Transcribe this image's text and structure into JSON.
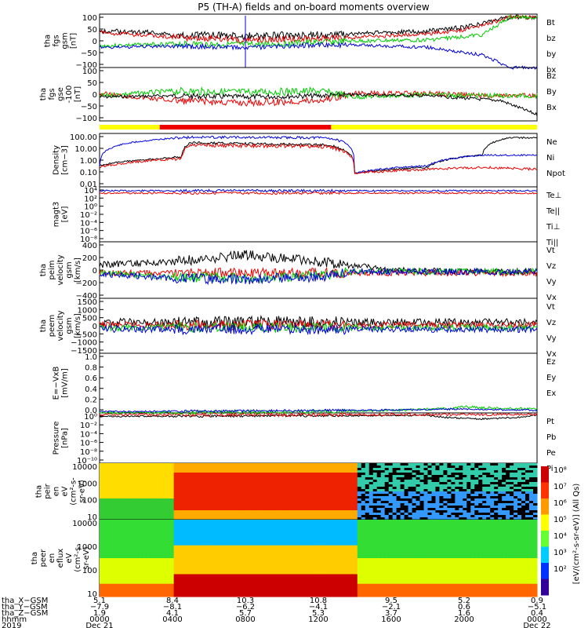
{
  "title": "P5 (TH-A) fields and on-board moments overview",
  "colors": {
    "black": "#000000",
    "red": "#ee0000",
    "green": "#00cc00",
    "blue": "#0000dd",
    "yellow": "#ffff00"
  },
  "panels": [
    {
      "id": "fgs",
      "ylabel": [
        "tha",
        "fgs",
        "gsm",
        "[nT]"
      ],
      "yticks": [
        "100",
        "50",
        "0",
        "−50",
        "−100"
      ],
      "legend": [
        {
          "text": "Bt",
          "color": "black"
        },
        {
          "text": "bz",
          "color": "red"
        },
        {
          "text": "by",
          "color": "green"
        },
        {
          "text": "bx",
          "color": "blue"
        }
      ]
    },
    {
      "id": "fgs-dsl",
      "ylabel": [
        "tha",
        "fgs",
        "gse",
        "-100",
        "[nT]"
      ],
      "yticks": [
        "100",
        "50",
        "0",
        "−50",
        "−100"
      ],
      "legend": [
        {
          "text": "Bz",
          "color": "red"
        },
        {
          "text": "By",
          "color": "green"
        },
        {
          "text": "Bx",
          "color": "black"
        }
      ]
    },
    {
      "id": "density",
      "ylabel": [
        "Density",
        "[cm−3]"
      ],
      "yticks": [
        "100.00",
        "10.00",
        "1.00",
        "0.10",
        "0.01"
      ],
      "legend": [
        {
          "text": "Ne",
          "color": "red"
        },
        {
          "text": "Ni",
          "color": "black"
        },
        {
          "text": "Npot",
          "color": "blue"
        }
      ]
    },
    {
      "id": "temp",
      "ylabel": [
        "magt3",
        "[eV]"
      ],
      "yticks": [
        "10⁴",
        "10²",
        "10⁰",
        "10⁻²",
        "10⁻⁴",
        "10⁻⁶",
        "10⁻⁸"
      ],
      "legend": [
        {
          "text": "Te⊥",
          "color": "red"
        },
        {
          "text": "Te||",
          "color": "black"
        },
        {
          "text": "Ti⊥",
          "color": "blue"
        },
        {
          "text": "Ti||",
          "color": "green"
        }
      ]
    },
    {
      "id": "peim",
      "ylabel": [
        "tha",
        "peim",
        "velocity",
        "gsm",
        "[km/s]"
      ],
      "yticks": [
        "400",
        "200",
        "0",
        "−200",
        "−400"
      ],
      "legend": [
        {
          "text": "Vt",
          "color": "black"
        },
        {
          "text": "Vz",
          "color": "red"
        },
        {
          "text": "Vy",
          "color": "green"
        },
        {
          "text": "Vx",
          "color": "blue"
        }
      ]
    },
    {
      "id": "peem",
      "ylabel": [
        "tha",
        "peem",
        "velocity",
        "gsm",
        "[km/s]"
      ],
      "yticks": [
        "1500",
        "1000",
        "500",
        "0",
        "−500",
        "−1000",
        "−1500"
      ],
      "legend": [
        {
          "text": "Vt",
          "color": "black"
        },
        {
          "text": "Vz",
          "color": "red"
        },
        {
          "text": "Vy",
          "color": "green"
        },
        {
          "text": "Vx",
          "color": "blue"
        }
      ]
    },
    {
      "id": "efield",
      "ylabel": [
        "E=−VxB",
        "[mV/m]"
      ],
      "yticks": [
        "1.0",
        "0.8",
        "0.6",
        "0.4",
        "0.2",
        "0.0"
      ],
      "legend": [
        {
          "text": "Ez",
          "color": "red"
        },
        {
          "text": "Ey",
          "color": "green"
        },
        {
          "text": "Ex",
          "color": "blue"
        }
      ]
    },
    {
      "id": "pressure",
      "ylabel": [
        "Pressure",
        "[nPa]"
      ],
      "yticks": [
        "10⁰",
        "10⁻²",
        "10⁻⁴",
        "10⁻⁶",
        "10⁻⁸",
        "10⁻¹⁰"
      ],
      "legend": [
        {
          "text": "Pt",
          "color": "black"
        },
        {
          "text": "Pb",
          "color": "red"
        },
        {
          "text": "Pe",
          "color": "green"
        },
        {
          "text": "Pi",
          "color": "blue"
        }
      ]
    },
    {
      "id": "peir",
      "ylabel": [
        "tha",
        "peir",
        "en",
        "eV",
        "(cm²-s-",
        "sr-eV)"
      ],
      "yticks": [
        "10000",
        "1000",
        "100",
        "10"
      ],
      "legend": []
    },
    {
      "id": "peer",
      "ylabel": [
        "tha",
        "peer",
        "en",
        "eflux",
        "eV",
        "(cm²-s-",
        "sr-eV)"
      ],
      "yticks": [
        "10000",
        "1000",
        "100",
        "10"
      ],
      "legend": []
    }
  ],
  "colorbar": {
    "label": "[eV/(cm²-s-sr-eV)] (All Qs)",
    "ticks": [
      "10⁸",
      "10⁷",
      "10⁶",
      "10⁵",
      "10⁴",
      "10³",
      "10²"
    ]
  },
  "xaxis": {
    "rows": [
      {
        "label": "tha_X−GSM",
        "values": [
          "5.1",
          "8.4",
          "10.3",
          "10.8",
          "9.5",
          "5.2",
          "0.9"
        ]
      },
      {
        "label": "tha_Y−GSM",
        "values": [
          "−7.9",
          "−8.1",
          "−6.2",
          "−4.1",
          "−2.1",
          "0.6",
          "−5.1"
        ]
      },
      {
        "label": "tha_Z−GSM",
        "values": [
          "1.9",
          "4.1",
          "5.7",
          "5.3",
          "3.7",
          "1.6",
          "0.4"
        ]
      },
      {
        "label": "hhmm",
        "values": [
          "0000",
          "0400",
          "0800",
          "1200",
          "1600",
          "2000",
          "0000"
        ]
      },
      {
        "label": "2019",
        "values": [
          "Dec 21",
          "",
          "",
          "",
          "",
          "",
          "Dec 22"
        ]
      }
    ]
  },
  "chart_data": {
    "type": "line",
    "title": "P5 (TH-A) fields and on-board moments overview",
    "time_ticks": [
      "0000",
      "0400",
      "0800",
      "1200",
      "1600",
      "2000",
      "0000"
    ],
    "series": [
      {
        "panel": "fgs",
        "name": "Bt",
        "hours": [
          0,
          3,
          4,
          8,
          12,
          14,
          18,
          20,
          22.5
        ],
        "values": [
          45,
          40,
          30,
          25,
          30,
          35,
          45,
          60,
          100
        ]
      },
      {
        "panel": "fgs",
        "name": "bz",
        "hours": [
          0,
          4,
          8,
          12,
          14,
          18,
          20,
          22.5
        ],
        "values": [
          40,
          20,
          10,
          15,
          20,
          35,
          50,
          100
        ]
      },
      {
        "panel": "fgs",
        "name": "by",
        "hours": [
          0,
          4,
          8,
          12,
          14,
          18,
          21,
          22.5
        ],
        "values": [
          -15,
          -5,
          -10,
          0,
          5,
          10,
          30,
          100
        ]
      },
      {
        "panel": "fgs",
        "name": "bx",
        "hours": [
          0,
          4,
          8,
          12,
          14,
          18,
          21,
          22.5
        ],
        "values": [
          -20,
          -15,
          -20,
          -10,
          -10,
          -20,
          -50,
          -100
        ]
      },
      {
        "panel": "density",
        "name": "Ni",
        "hours": [
          0,
          4.5,
          5,
          12.5,
          14,
          18,
          21,
          22.5
        ],
        "values": [
          0.4,
          2,
          30,
          20,
          0.1,
          0.3,
          3,
          80
        ]
      },
      {
        "panel": "density",
        "name": "Npot",
        "hours": [
          0,
          5,
          12.5,
          14,
          18,
          21
        ],
        "values": [
          0.4,
          90,
          80,
          0.1,
          0.4,
          3
        ]
      },
      {
        "panel": "peim",
        "name": "Vt",
        "hours": [
          0,
          4,
          6,
          8,
          12,
          16,
          20,
          24
        ],
        "values": [
          100,
          150,
          200,
          250,
          150,
          20,
          0,
          0
        ]
      }
    ]
  }
}
